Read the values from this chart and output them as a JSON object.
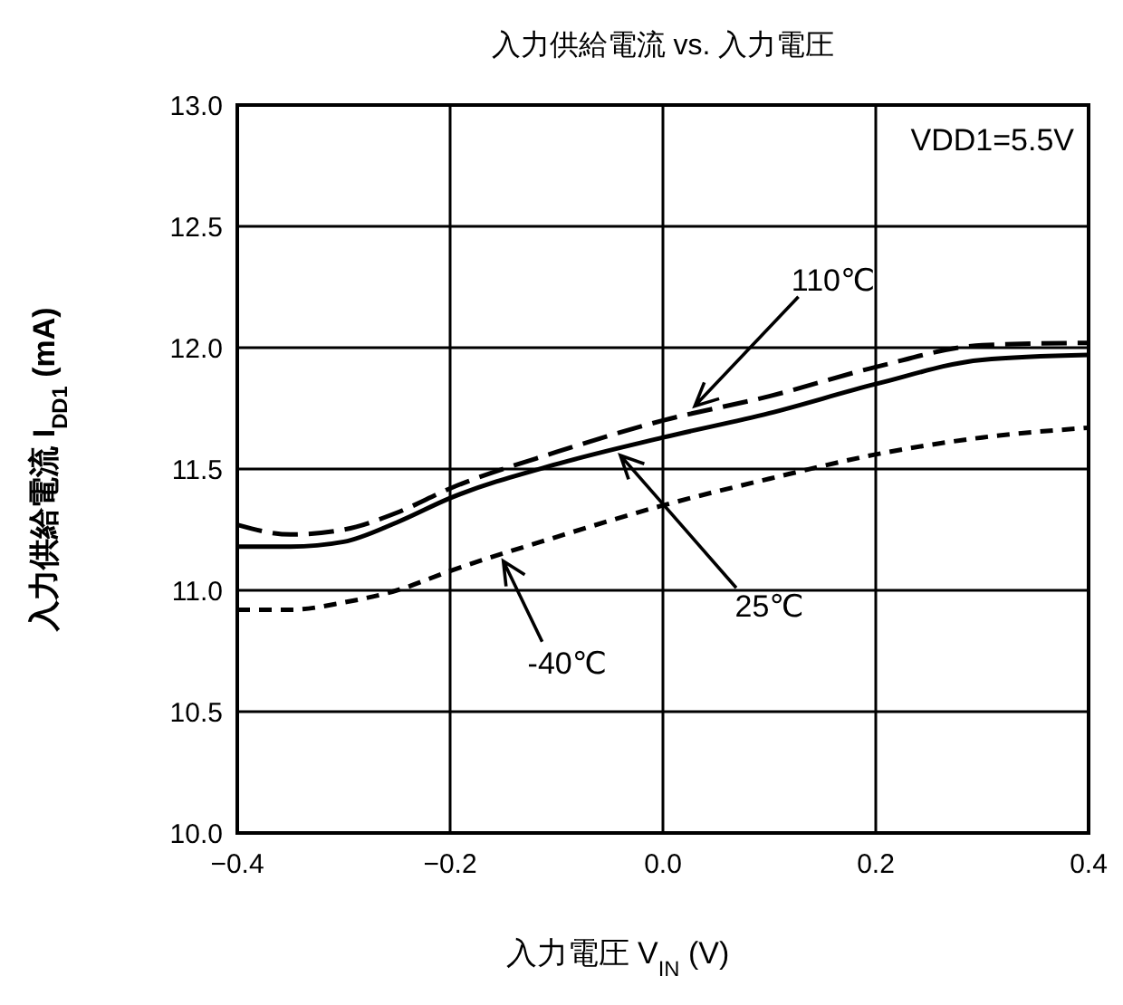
{
  "chart_data": {
    "type": "line",
    "title": "入力供給電流 vs. 入力電圧",
    "xlabel": "入力電圧  V$_{IN}$ (V)",
    "ylabel": "入力供給電流 I$_{DD1}$ (mA)",
    "x": [
      -0.4,
      -0.35,
      -0.3,
      -0.25,
      -0.2,
      -0.1,
      0,
      0.1,
      0.2,
      0.3,
      0.4
    ],
    "series": [
      {
        "name": "110℃",
        "color": "#000000",
        "line_style": "dashed",
        "values": [
          11.27,
          11.23,
          11.25,
          11.32,
          11.42,
          11.57,
          11.7,
          11.8,
          11.92,
          12.01,
          12.02
        ]
      },
      {
        "name": "25℃",
        "color": "#000000",
        "line_style": "solid",
        "values": [
          11.18,
          11.18,
          11.2,
          11.28,
          11.38,
          11.52,
          11.63,
          11.73,
          11.85,
          11.95,
          11.97
        ]
      },
      {
        "name": "-40℃",
        "color": "#000000",
        "line_style": "dotted",
        "values": [
          10.92,
          10.92,
          10.95,
          11.0,
          11.08,
          11.22,
          11.35,
          11.46,
          11.56,
          11.63,
          11.67
        ]
      }
    ],
    "annotations": [
      "VDD1=5.5V"
    ],
    "xlim": [
      -0.4,
      0.4
    ],
    "ylim": [
      10,
      13
    ],
    "xticks": [
      {
        "value": -0.4,
        "label": "−0.4"
      },
      {
        "value": -0.2,
        "label": "−0.2"
      },
      {
        "value": 0,
        "label": "0.0"
      },
      {
        "value": 0.2,
        "label": "0.2"
      },
      {
        "value": 0.4,
        "label": "0.4"
      }
    ],
    "yticks": [
      {
        "value": 10,
        "label": "10.0"
      },
      {
        "value": 10.5,
        "label": "10.5"
      },
      {
        "value": 11,
        "label": "11.0"
      },
      {
        "value": 11.5,
        "label": "11.5"
      },
      {
        "value": 12,
        "label": "12.0"
      },
      {
        "value": 12.5,
        "label": "12.5"
      },
      {
        "value": 13,
        "label": "13.0"
      }
    ],
    "grid": true
  }
}
